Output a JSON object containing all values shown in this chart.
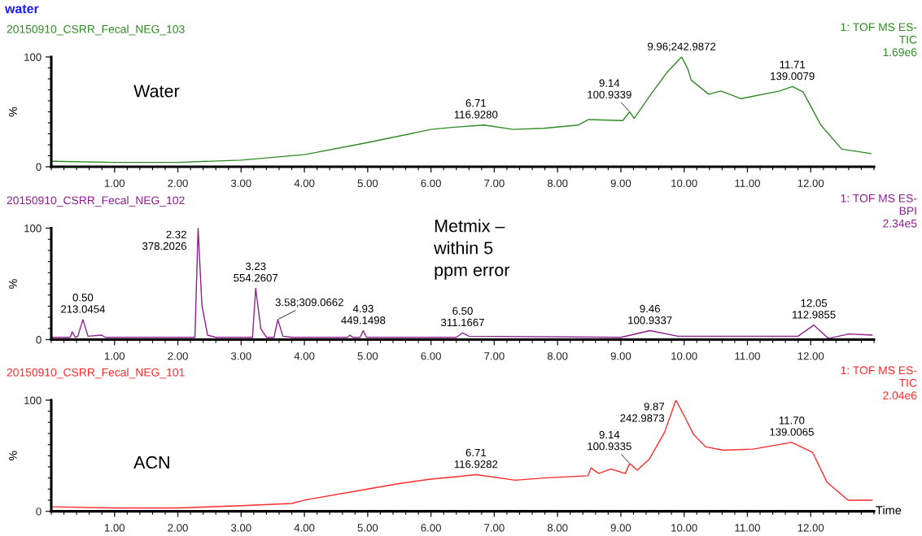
{
  "chart_data": [
    {
      "type": "line",
      "title": "water",
      "subtitle": "20150910_CSRR_Fecal_NEG_103",
      "ylabel": "%",
      "x": [
        0.01,
        1,
        2,
        3,
        4,
        5,
        6,
        6.37,
        6.84,
        7.3,
        7.78,
        8.33,
        8.49,
        9.03,
        9.14,
        9.21,
        9.45,
        9.73,
        9.96,
        10.06,
        10.11,
        10.39,
        10.58,
        10.9,
        11.51,
        11.71,
        11.88,
        12.16,
        12.49,
        12.95
      ],
      "series": [
        {
          "color": "#2f8a24",
          "values": [
            5,
            4,
            4,
            6,
            11,
            22,
            34,
            36,
            38,
            34,
            35,
            38,
            43,
            42,
            50,
            44,
            64,
            86,
            100,
            89,
            79,
            66,
            69,
            62,
            69,
            73,
            68,
            38,
            16,
            12
          ]
        }
      ],
      "xlim": [
        0,
        13
      ],
      "xticks": [
        {
          "value": 1,
          "label": "1.00"
        },
        {
          "value": 2,
          "label": "2.00"
        },
        {
          "value": 3,
          "label": "3.00"
        },
        {
          "value": 4,
          "label": "4.00"
        },
        {
          "value": 5,
          "label": "5.00"
        },
        {
          "value": 6,
          "label": "6.00"
        },
        {
          "value": 7,
          "label": "7.00"
        },
        {
          "value": 8,
          "label": "8.00"
        },
        {
          "value": 9,
          "label": "9.00"
        },
        {
          "value": 10,
          "label": "10.00"
        },
        {
          "value": 11,
          "label": "11.00"
        },
        {
          "value": 12,
          "label": "12.00"
        }
      ],
      "ylim": [
        0,
        100
      ],
      "yticks": [
        0,
        100
      ],
      "grid": false,
      "legend": false,
      "annotations": [
        "1: TOF MS ES-\nTIC\n1.69e6",
        "Water",
        {
          "text": "6.71\n116.9280",
          "x": 6.71,
          "y": 38
        },
        {
          "text": "9.14\n100.9339",
          "x": 9.14,
          "y": 50
        },
        {
          "text": "9.96;242.9872",
          "x": 9.96,
          "y": 100
        },
        {
          "text": "11.71\n139.0079",
          "x": 11.71,
          "y": 73
        }
      ]
    },
    {
      "type": "line",
      "subtitle": "20150910_CSRR_Fecal_NEG_102",
      "ylabel": "%",
      "x": [
        0.01,
        0.3,
        0.33,
        0.38,
        0.42,
        0.5,
        0.58,
        0.8,
        0.85,
        0.9,
        2.27,
        2.32,
        2.38,
        2.47,
        2.6,
        3.18,
        3.23,
        3.31,
        3.4,
        3.52,
        3.58,
        3.66,
        3.8,
        4.68,
        4.72,
        4.76,
        4.88,
        4.93,
        4.98,
        6.4,
        6.5,
        6.6,
        9.0,
        9.46,
        9.9,
        11.8,
        12.05,
        12.28,
        12.6,
        12.97
      ],
      "series": [
        {
          "color": "#8e1f8e",
          "values": [
            2,
            2,
            7,
            2,
            3,
            18,
            3,
            4,
            2,
            2,
            2,
            100,
            31,
            4,
            2,
            2,
            46,
            10,
            2,
            2,
            18,
            3,
            2,
            2,
            4,
            2,
            2,
            8,
            2,
            2,
            6,
            3,
            2,
            8,
            3,
            3,
            13,
            1,
            5,
            4
          ]
        }
      ],
      "xlim": [
        0,
        13
      ],
      "xticks": [
        {
          "value": 1,
          "label": "1.00"
        },
        {
          "value": 2,
          "label": "2.00"
        },
        {
          "value": 3,
          "label": "3.00"
        },
        {
          "value": 4,
          "label": "4.00"
        },
        {
          "value": 5,
          "label": "5.00"
        },
        {
          "value": 6,
          "label": "6.00"
        },
        {
          "value": 7,
          "label": "7.00"
        },
        {
          "value": 8,
          "label": "8.00"
        },
        {
          "value": 9,
          "label": "9.00"
        },
        {
          "value": 10,
          "label": "10.00"
        },
        {
          "value": 11,
          "label": "11.00"
        },
        {
          "value": 12,
          "label": "12.00"
        }
      ],
      "ylim": [
        0,
        100
      ],
      "yticks": [
        0,
        100
      ],
      "grid": false,
      "legend": false,
      "annotations": [
        "1: TOF MS ES-\nBPI\n2.34e5",
        "Metmix –\nwithin 5\nppm error",
        {
          "text": "0.50\n213.0454",
          "x": 0.5,
          "y": 18
        },
        {
          "text": "2.32\n378.2026",
          "x": 2.32,
          "y": 100
        },
        {
          "text": "3.23\n554.2607",
          "x": 3.23,
          "y": 46
        },
        {
          "text": "3.58;309.0662",
          "x": 3.58,
          "y": 18
        },
        {
          "text": "4.93\n449.1498",
          "x": 4.93,
          "y": 8
        },
        {
          "text": "6.50\n311.1667",
          "x": 6.5,
          "y": 6
        },
        {
          "text": "9.46\n100.9337",
          "x": 9.46,
          "y": 8
        },
        {
          "text": "12.05\n112.9855",
          "x": 12.05,
          "y": 13
        }
      ]
    },
    {
      "type": "line",
      "subtitle": "20150910_CSRR_Fecal_NEG_101",
      "ylabel": "%",
      "xlabel": "Time",
      "x": [
        0.01,
        1,
        2,
        3,
        3.8,
        4,
        5,
        5.5,
        6,
        6.39,
        6.71,
        7.33,
        7.8,
        8.48,
        8.53,
        8.65,
        8.84,
        9.07,
        9.14,
        9.26,
        9.45,
        9.69,
        9.87,
        10.01,
        10.15,
        10.34,
        10.62,
        11.09,
        11.7,
        12.03,
        12.26,
        12.59,
        12.97
      ],
      "series": [
        {
          "color": "#ff2a2a",
          "values": [
            4,
            3,
            3,
            5,
            7,
            10,
            20,
            25,
            29,
            31,
            33,
            28,
            30,
            32,
            39,
            34,
            38,
            34,
            43,
            37,
            47,
            71,
            100,
            85,
            69,
            58,
            55,
            56,
            62,
            53,
            26,
            10,
            10
          ]
        }
      ],
      "xlim": [
        0,
        13
      ],
      "xticks": [
        {
          "value": 1,
          "label": "1.00"
        },
        {
          "value": 2,
          "label": "2.00"
        },
        {
          "value": 3,
          "label": "3.00"
        },
        {
          "value": 4,
          "label": "4.00"
        },
        {
          "value": 5,
          "label": "5.00"
        },
        {
          "value": 6,
          "label": "6.00"
        },
        {
          "value": 7,
          "label": "7.00"
        },
        {
          "value": 8,
          "label": "8.00"
        },
        {
          "value": 9,
          "label": "9.00"
        },
        {
          "value": 10,
          "label": "10.00"
        },
        {
          "value": 11,
          "label": "11.00"
        },
        {
          "value": 12,
          "label": "12.00"
        }
      ],
      "ylim": [
        0,
        100
      ],
      "yticks": [
        0,
        100
      ],
      "grid": false,
      "legend": false,
      "annotations": [
        "1: TOF MS ES-\nTIC\n2.04e6",
        "ACN",
        {
          "text": "6.71\n116.9282",
          "x": 6.71,
          "y": 33
        },
        {
          "text": "9.14\n100.9335",
          "x": 9.14,
          "y": 43
        },
        {
          "text": "9.87\n242.9873",
          "x": 9.87,
          "y": 100
        },
        {
          "text": "11.70\n139.0065",
          "x": 11.7,
          "y": 62
        }
      ]
    }
  ]
}
